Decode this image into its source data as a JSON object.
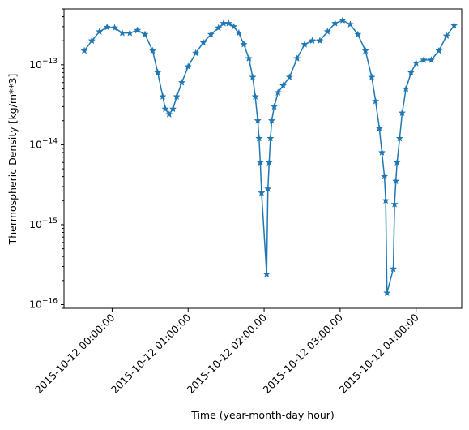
{
  "chart_data": {
    "type": "line",
    "title": "",
    "xlabel": "Time (year-month-day hour)",
    "ylabel": "Thermospheric Density [kg/m**3]",
    "y_scale": "log",
    "ylim": [
      9e-17,
      5e-13
    ],
    "xlim": [
      "2015-10-11 23:22:00",
      "2015-10-12 04:36:00"
    ],
    "x_ticks": [
      "2015-10-12 00:00:00",
      "2015-10-12 01:00:00",
      "2015-10-12 02:00:00",
      "2015-10-12 03:00:00",
      "2015-10-12 04:00:00"
    ],
    "y_ticks": [
      {
        "value": 1e-16,
        "label": "10^-16"
      },
      {
        "value": 1e-15,
        "label": "10^-15"
      },
      {
        "value": 1e-14,
        "label": "10^-14"
      },
      {
        "value": 1e-13,
        "label": "10^-13"
      }
    ],
    "grid": false,
    "legend": "none",
    "marker": "star",
    "series": [
      {
        "color": "#1f77b4",
        "points": [
          [
            "2015-10-11 23:38",
            1.5e-13
          ],
          [
            "2015-10-11 23:44",
            2e-13
          ],
          [
            "2015-10-11 23:50",
            2.6e-13
          ],
          [
            "2015-10-11 23:56",
            2.95e-13
          ],
          [
            "2015-10-12 00:02",
            2.9e-13
          ],
          [
            "2015-10-12 00:08",
            2.5e-13
          ],
          [
            "2015-10-12 00:14",
            2.5e-13
          ],
          [
            "2015-10-12 00:20",
            2.7e-13
          ],
          [
            "2015-10-12 00:26",
            2.4e-13
          ],
          [
            "2015-10-12 00:32",
            1.5e-13
          ],
          [
            "2015-10-12 00:36",
            8e-14
          ],
          [
            "2015-10-12 00:40",
            4e-14
          ],
          [
            "2015-10-12 00:42",
            2.8e-14
          ],
          [
            "2015-10-12 00:45",
            2.4e-14
          ],
          [
            "2015-10-12 00:48",
            2.8e-14
          ],
          [
            "2015-10-12 00:51",
            4e-14
          ],
          [
            "2015-10-12 00:55",
            6e-14
          ],
          [
            "2015-10-12 01:00",
            9.5e-14
          ],
          [
            "2015-10-12 01:06",
            1.4e-13
          ],
          [
            "2015-10-12 01:12",
            1.9e-13
          ],
          [
            "2015-10-12 01:18",
            2.4e-13
          ],
          [
            "2015-10-12 01:24",
            2.9e-13
          ],
          [
            "2015-10-12 01:28",
            3.3e-13
          ],
          [
            "2015-10-12 01:32",
            3.3e-13
          ],
          [
            "2015-10-12 01:36",
            3e-13
          ],
          [
            "2015-10-12 01:40",
            2.5e-13
          ],
          [
            "2015-10-12 01:44",
            1.8e-13
          ],
          [
            "2015-10-12 01:48",
            1.2e-13
          ],
          [
            "2015-10-12 01:51",
            7e-14
          ],
          [
            "2015-10-12 01:53",
            4e-14
          ],
          [
            "2015-10-12 01:55",
            2e-14
          ],
          [
            "2015-10-12 01:56",
            1.2e-14
          ],
          [
            "2015-10-12 01:57",
            6e-15
          ],
          [
            "2015-10-12 01:58",
            2.5e-15
          ],
          [
            "2015-10-12 02:02",
            2.4e-16
          ],
          [
            "2015-10-12 02:03",
            2.8e-15
          ],
          [
            "2015-10-12 02:04",
            6e-15
          ],
          [
            "2015-10-12 02:05",
            1.2e-14
          ],
          [
            "2015-10-12 02:06",
            2e-14
          ],
          [
            "2015-10-12 02:08",
            3e-14
          ],
          [
            "2015-10-12 02:11",
            4.5e-14
          ],
          [
            "2015-10-12 02:15",
            5.5e-14
          ],
          [
            "2015-10-12 02:20",
            7e-14
          ],
          [
            "2015-10-12 02:26",
            1.2e-13
          ],
          [
            "2015-10-12 02:32",
            1.8e-13
          ],
          [
            "2015-10-12 02:38",
            2e-13
          ],
          [
            "2015-10-12 02:44",
            2e-13
          ],
          [
            "2015-10-12 02:50",
            2.6e-13
          ],
          [
            "2015-10-12 02:56",
            3.3e-13
          ],
          [
            "2015-10-12 03:02",
            3.6e-13
          ],
          [
            "2015-10-12 03:08",
            3.2e-13
          ],
          [
            "2015-10-12 03:14",
            2.4e-13
          ],
          [
            "2015-10-12 03:20",
            1.5e-13
          ],
          [
            "2015-10-12 03:25",
            7e-14
          ],
          [
            "2015-10-12 03:28",
            3.5e-14
          ],
          [
            "2015-10-12 03:31",
            1.6e-14
          ],
          [
            "2015-10-12 03:33",
            8e-15
          ],
          [
            "2015-10-12 03:35",
            4e-15
          ],
          [
            "2015-10-12 03:36",
            2e-15
          ],
          [
            "2015-10-12 03:37",
            1.4e-16
          ],
          [
            "2015-10-12 03:42",
            2.8e-16
          ],
          [
            "2015-10-12 03:43",
            1.8e-15
          ],
          [
            "2015-10-12 03:44",
            3.5e-15
          ],
          [
            "2015-10-12 03:45",
            6e-15
          ],
          [
            "2015-10-12 03:47",
            1.2e-14
          ],
          [
            "2015-10-12 03:49",
            2.5e-14
          ],
          [
            "2015-10-12 03:52",
            5e-14
          ],
          [
            "2015-10-12 03:56",
            8e-14
          ],
          [
            "2015-10-12 04:00",
            1.05e-13
          ],
          [
            "2015-10-12 04:06",
            1.15e-13
          ],
          [
            "2015-10-12 04:12",
            1.15e-13
          ],
          [
            "2015-10-12 04:18",
            1.5e-13
          ],
          [
            "2015-10-12 04:24",
            2.3e-13
          ],
          [
            "2015-10-12 04:30",
            3.1e-13
          ]
        ]
      }
    ]
  }
}
